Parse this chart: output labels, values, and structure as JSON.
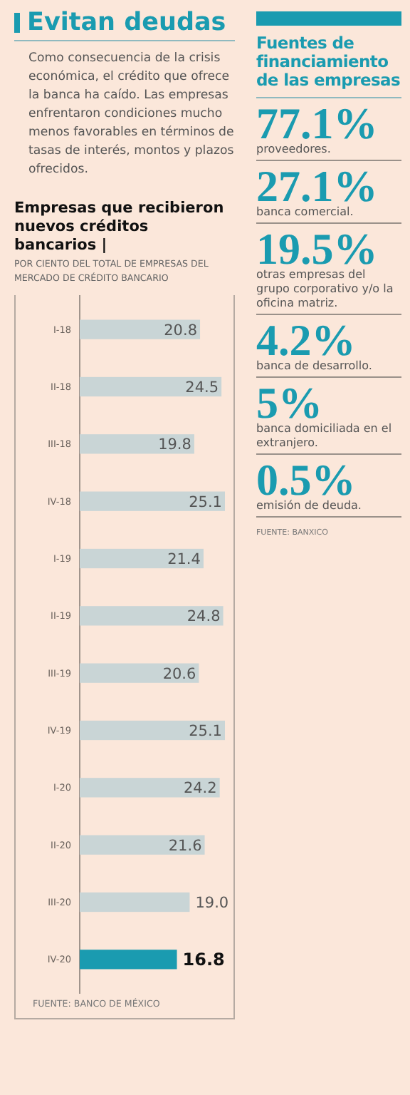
{
  "chart_data": [
    {
      "type": "bar",
      "orientation": "horizontal",
      "title": "Empresas que recibieron nuevos créditos bancarios |",
      "subtitle": "POR CIENTO DEL TOTAL DE EMPRESAS DEL MERCADO DE CRÉDITO BANCARIO",
      "annotations": [
        "Evitan deudas",
        "Como consecuencia de la crisis económica, el crédito que ofrece la banca ha caído. Las empresas enfrentaron condiciones mucho menos favorables en términos de tasas de interés, montos y plazos ofrecidos.",
        "FUENTE: BANCO DE MÉXICO"
      ],
      "categories": [
        "I-18",
        "II-18",
        "III-18",
        "IV-18",
        "I-19",
        "II-19",
        "III-19",
        "IV-19",
        "I-20",
        "II-20",
        "III-20",
        "IV-20"
      ],
      "values": [
        20.8,
        24.5,
        19.8,
        25.1,
        21.4,
        24.8,
        20.6,
        25.1,
        24.2,
        21.6,
        19.0,
        16.8
      ],
      "value_labels": [
        "20.8",
        "24.5",
        "19.8",
        "25.1",
        "21.4",
        "24.8",
        "20.6",
        "25.1",
        "24.2",
        "21.6",
        "19.0",
        "16.8"
      ],
      "colors": [
        "#c9d5d6",
        "#c9d5d6",
        "#c9d5d6",
        "#c9d5d6",
        "#c9d5d6",
        "#c9d5d6",
        "#c9d5d6",
        "#c9d5d6",
        "#c9d5d6",
        "#c9d5d6",
        "#c9d5d6",
        "#1a9bb0"
      ],
      "tick_labels": "y"
    },
    {
      "type": "other",
      "title": "Fuentes de financiamiento de las empresas",
      "categories": [
        "proveedores.",
        "banca comercial.",
        "otras empresas del grupo corporativo y/o la oficina matriz.",
        "banca de desarrollo.",
        "banca domiciliada en el extranjero.",
        "emisión de deuda."
      ],
      "value_labels": [
        "77.1%",
        "27.1%",
        "19.5%",
        "4.2%",
        "5%",
        "0.5%"
      ],
      "annotations": [
        "FUENTE: BANXICO"
      ]
    }
  ]
}
